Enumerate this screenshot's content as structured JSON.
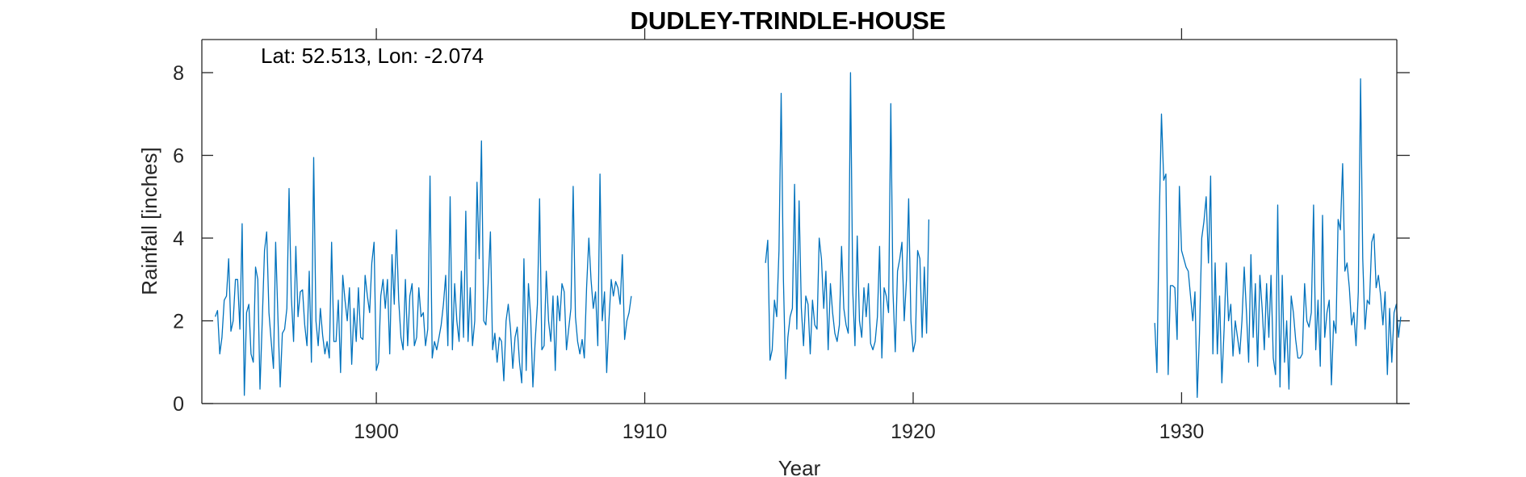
{
  "chart_data": {
    "type": "line",
    "title": "DUDLEY-TRINDLE-HOUSE",
    "annotation": "Lat: 52.513, Lon: -2.074",
    "xlabel": "Year",
    "ylabel": "Rainfall [inches]",
    "xlim": [
      1893.5,
      1938.5
    ],
    "ylim": [
      0,
      8.8
    ],
    "xticks": [
      1900,
      1910,
      1920,
      1930
    ],
    "yticks": [
      0,
      2,
      4,
      6,
      8
    ],
    "grid": false,
    "legend": "none",
    "color": "#0072BD",
    "series": [
      {
        "start_year": 1894,
        "values": [
          2.1,
          2.25,
          1.2,
          1.6,
          2.5,
          2.6,
          3.5,
          1.75,
          2.0,
          3.0,
          3.0,
          1.8,
          4.35,
          0.2,
          2.2,
          2.4,
          1.2,
          1.0,
          3.3,
          3.0,
          0.35,
          2.0,
          3.7,
          4.15,
          2.2,
          1.5,
          0.85,
          3.9,
          2.1,
          0.4,
          1.7,
          1.8,
          2.3,
          5.2,
          2.6,
          1.5,
          3.8,
          2.1,
          2.7,
          2.75,
          1.9,
          1.4,
          3.2,
          1.0,
          5.95,
          2.0,
          1.4,
          2.3,
          1.65,
          1.2,
          1.5,
          1.1,
          3.9,
          1.5,
          1.5,
          2.5,
          0.75,
          3.1,
          2.5,
          2.0,
          2.8,
          0.95,
          2.3,
          1.5,
          2.8,
          1.6,
          1.55,
          3.1,
          2.6,
          2.2,
          3.4,
          3.9,
          0.8,
          1.0,
          2.6,
          3.0,
          2.3,
          3.0,
          1.2,
          3.6,
          2.4,
          4.2,
          2.5,
          1.6,
          1.3,
          3.0,
          1.4,
          2.6,
          2.9,
          1.4,
          1.6,
          2.8,
          2.1,
          2.2,
          1.4,
          1.8,
          5.5,
          1.1,
          1.5,
          1.3,
          1.6,
          1.9,
          2.4,
          3.1,
          1.4,
          5.0,
          1.3,
          2.9,
          2.0,
          1.5,
          3.2,
          1.6,
          4.65,
          1.5,
          2.8,
          1.4,
          2.0,
          5.35,
          3.5,
          6.35,
          2.0,
          1.9,
          2.9,
          4.15,
          1.3,
          1.7,
          1.0,
          1.6,
          1.5,
          0.55,
          2.0,
          2.4,
          1.8,
          0.85,
          1.6,
          1.85,
          1.0,
          0.5,
          3.5,
          0.8,
          2.9,
          2.1,
          0.4,
          1.5,
          2.4,
          4.95,
          1.3,
          1.4,
          3.2,
          2.0,
          1.5,
          2.6,
          0.8,
          2.6,
          2.0,
          2.9,
          2.7,
          1.3,
          1.8,
          2.3,
          5.25,
          2.1,
          1.5,
          1.2,
          1.55,
          1.1,
          2.8,
          4.0,
          3.0,
          2.3,
          2.7,
          1.4,
          5.55,
          2.0,
          2.7,
          0.75,
          2.0,
          3.0,
          2.6,
          2.95,
          2.8,
          2.4,
          3.6,
          1.55,
          2.0,
          2.2,
          2.6
        ]
      },
      {
        "start_year": 1914.5,
        "values": [
          3.4,
          3.95,
          1.05,
          1.3,
          2.5,
          2.1,
          3.7,
          7.5,
          3.0,
          0.6,
          1.6,
          2.1,
          2.3,
          5.3,
          1.8,
          4.9,
          2.3,
          1.4,
          2.6,
          2.4,
          1.2,
          2.5,
          1.9,
          1.8,
          4.0,
          3.5,
          2.3,
          3.2,
          1.3,
          2.9,
          2.2,
          1.7,
          1.5,
          1.9,
          3.8,
          2.3,
          1.9,
          1.7,
          8.0,
          2.7,
          1.4,
          4.05,
          2.0,
          1.6,
          2.8,
          2.1,
          2.9,
          1.45,
          1.3,
          1.5,
          2.1,
          3.8,
          1.1,
          2.8,
          2.6,
          2.2,
          7.25,
          2.7,
          1.25,
          3.2,
          3.5,
          3.9,
          2.0,
          3.0,
          4.95,
          2.0,
          1.25,
          1.5,
          3.7,
          3.5,
          1.6,
          3.3,
          1.7,
          4.45
        ]
      },
      {
        "start_year": 1929.0,
        "values": [
          1.95,
          0.75,
          4.4,
          7.0,
          5.4,
          5.55,
          0.7,
          2.85,
          2.85,
          2.8,
          1.55,
          5.25,
          3.7,
          3.5,
          3.3,
          3.2,
          2.6,
          2.0,
          2.7,
          0.15,
          1.7,
          4.0,
          4.4,
          5.0,
          3.4,
          5.5,
          1.2,
          3.4,
          1.2,
          2.6,
          0.5,
          1.8,
          3.4,
          2.0,
          2.4,
          1.15,
          2.0,
          1.6,
          1.2,
          2.0,
          3.3,
          2.2,
          1.0,
          3.6,
          1.6,
          2.9,
          0.9,
          3.1,
          2.3,
          1.3,
          2.9,
          1.6,
          3.1,
          1.1,
          0.7,
          4.8,
          0.4,
          3.1,
          1.0,
          2.0,
          0.35,
          2.6,
          2.2,
          1.55,
          1.1,
          1.1,
          1.2,
          2.9,
          2.0,
          1.85,
          2.2,
          4.8,
          1.3,
          2.5,
          0.9,
          4.55,
          1.6,
          2.2,
          2.5,
          0.45,
          2.0,
          1.7,
          4.45,
          4.2,
          5.8,
          3.2,
          3.4,
          2.8,
          1.9,
          2.2,
          1.4,
          2.7,
          7.85,
          3.5,
          1.8,
          2.5,
          2.4,
          3.9,
          4.1,
          2.8,
          3.1,
          2.6,
          1.9,
          2.7,
          0.7,
          2.3,
          1.0,
          2.2,
          2.4,
          1.6,
          2.1
        ]
      }
    ]
  }
}
